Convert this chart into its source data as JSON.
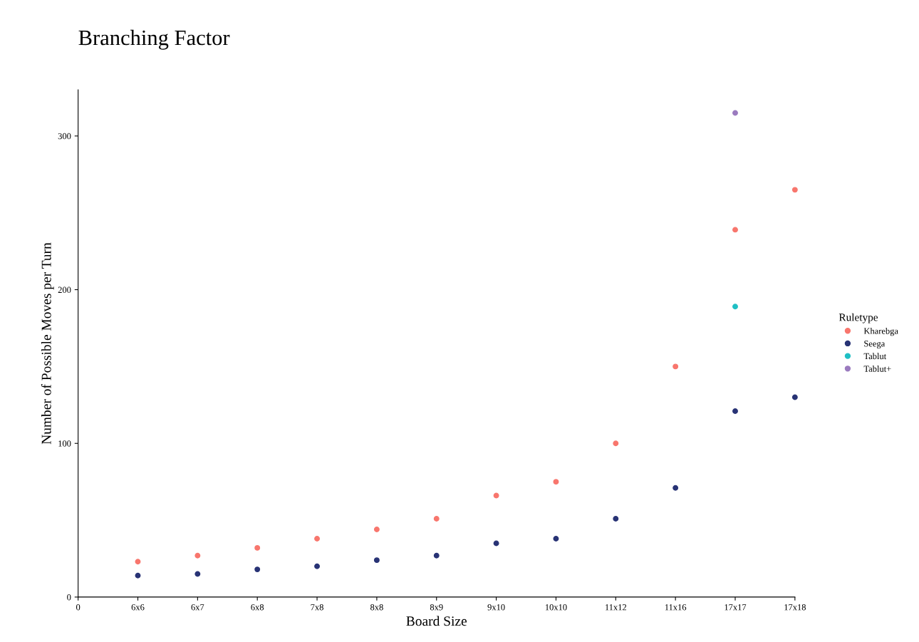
{
  "chart_data": {
    "type": "scatter",
    "title": "Branching Factor",
    "xlabel": "Board Size",
    "ylabel": "Number of Possible Moves per Turn",
    "legend_title": "Ruletype",
    "categories": [
      "0",
      "6x6",
      "6x7",
      "6x8",
      "7x8",
      "8x8",
      "8x9",
      "9x10",
      "10x10",
      "11x12",
      "11x16",
      "17x17",
      "17x18"
    ],
    "series": [
      {
        "name": "Kharebga",
        "color": "#f8766d",
        "values": [
          null,
          23,
          27,
          32,
          38,
          44,
          51,
          66,
          75,
          100,
          150,
          239,
          265
        ]
      },
      {
        "name": "Seega",
        "color": "#283375",
        "values": [
          null,
          14,
          15,
          18,
          20,
          24,
          27,
          35,
          38,
          51,
          71,
          121,
          130
        ]
      },
      {
        "name": "Tablut",
        "color": "#1fbfc4",
        "values": [
          null,
          null,
          null,
          null,
          null,
          null,
          null,
          null,
          null,
          null,
          null,
          189,
          null
        ]
      },
      {
        "name": "Tablut+",
        "color": "#9b7bbf",
        "values": [
          null,
          null,
          null,
          null,
          null,
          null,
          null,
          null,
          null,
          null,
          null,
          315,
          null
        ]
      }
    ],
    "ylim": [
      0,
      330
    ],
    "yticks": [
      0,
      100,
      200,
      300
    ],
    "grid": false,
    "legend": "right",
    "marker": "circle"
  }
}
